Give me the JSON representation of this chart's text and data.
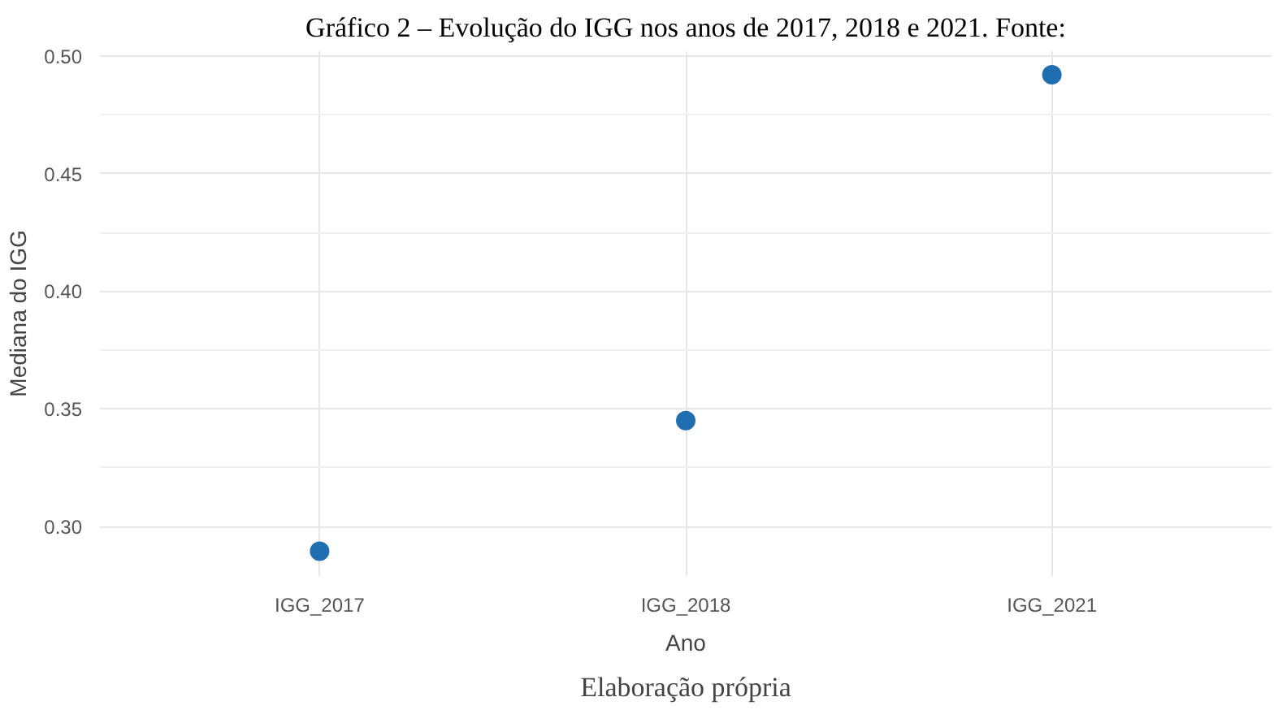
{
  "chart_data": {
    "type": "scatter",
    "title": "Gráfico 2 – Evolução do IGG nos anos de 2017, 2018 e 2021. Fonte:",
    "xlabel": "Ano",
    "ylabel": "Mediana do IGG",
    "categories": [
      "IGG_2017",
      "IGG_2018",
      "IGG_2021"
    ],
    "series": [
      {
        "color": "#1f6fb0",
        "values": [
          0.2895,
          0.345,
          0.492
        ]
      }
    ],
    "ylim": [
      0.279,
      0.502
    ],
    "yticks": [
      {
        "value": 0.3,
        "label": "0.30"
      },
      {
        "value": 0.35,
        "label": "0.35"
      },
      {
        "value": 0.4,
        "label": "0.40"
      },
      {
        "value": 0.45,
        "label": "0.45"
      },
      {
        "value": 0.5,
        "label": "0.50"
      }
    ],
    "grid": true,
    "marker": "circle",
    "annotations": [
      "Elaboração própria"
    ]
  }
}
